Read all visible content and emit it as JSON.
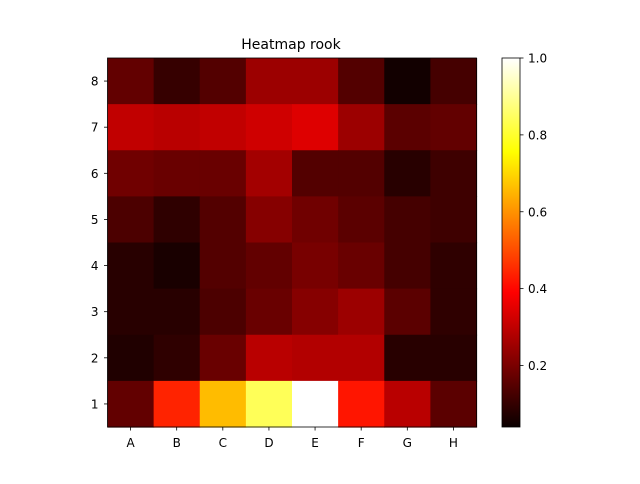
{
  "chart_data": {
    "type": "heatmap",
    "title": "Heatmap rook",
    "xlabel": "",
    "ylabel": "",
    "x_categories": [
      "A",
      "B",
      "C",
      "D",
      "E",
      "F",
      "G",
      "H"
    ],
    "y_categories": [
      "8",
      "7",
      "6",
      "5",
      "4",
      "3",
      "2",
      "1"
    ],
    "values": [
      [
        0.16,
        0.1,
        0.14,
        0.24,
        0.24,
        0.14,
        0.05,
        0.12
      ],
      [
        0.29,
        0.28,
        0.29,
        0.31,
        0.33,
        0.24,
        0.15,
        0.16
      ],
      [
        0.18,
        0.17,
        0.17,
        0.25,
        0.14,
        0.14,
        0.08,
        0.11
      ],
      [
        0.13,
        0.09,
        0.14,
        0.21,
        0.18,
        0.15,
        0.12,
        0.11
      ],
      [
        0.08,
        0.06,
        0.14,
        0.16,
        0.19,
        0.17,
        0.12,
        0.09
      ],
      [
        0.08,
        0.08,
        0.13,
        0.17,
        0.21,
        0.24,
        0.15,
        0.09
      ],
      [
        0.07,
        0.09,
        0.17,
        0.28,
        0.27,
        0.27,
        0.08,
        0.08
      ],
      [
        0.16,
        0.44,
        0.66,
        0.84,
        1.0,
        0.42,
        0.28,
        0.15
      ]
    ],
    "colormap": "hot",
    "colorbar": {
      "range": [
        0.04,
        1.0
      ],
      "ticks": [
        "0.2",
        "0.4",
        "0.6",
        "0.8",
        "1.0"
      ],
      "tick_values": [
        0.2,
        0.4,
        0.6,
        0.8,
        1.0
      ]
    },
    "grid": false,
    "legend": "none"
  }
}
